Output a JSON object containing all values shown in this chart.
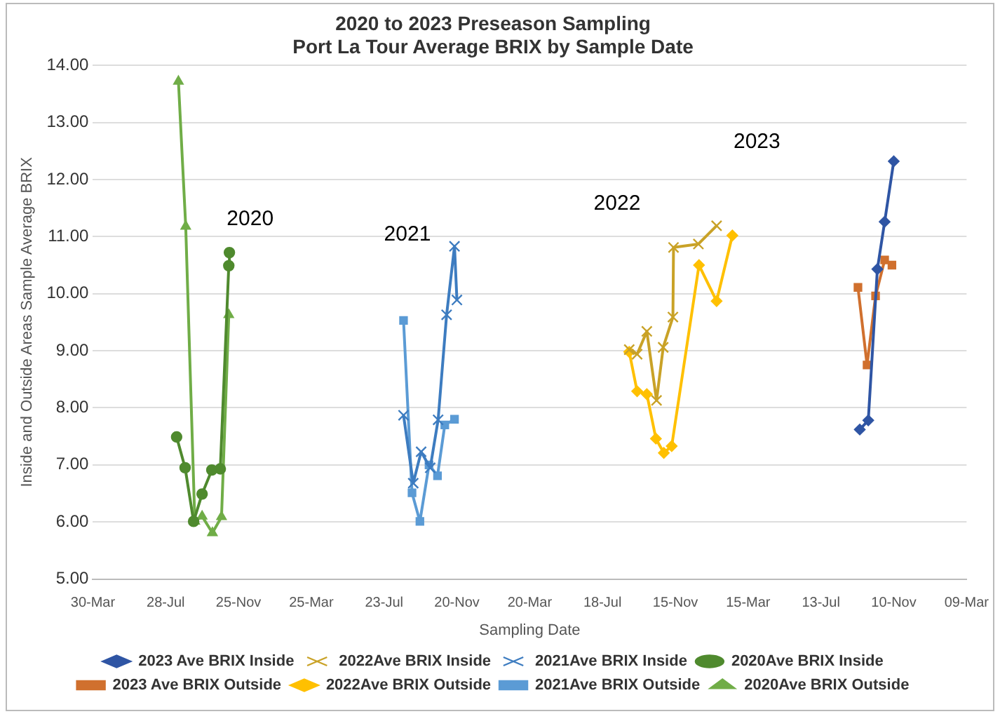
{
  "chart_data": {
    "type": "line",
    "title": "2020 to 2023 Preseason Sampling\nPort La Tour Average BRIX by Sample Date",
    "xlabel": "Sampling Date",
    "ylabel": "Inside and Outside Areas Sample Average BRIX",
    "xlim": [
      "2020-03-30",
      "2024-03-09"
    ],
    "xticks": [
      {
        "value": "2020-03-30",
        "label": "30-Mar"
      },
      {
        "value": "2020-07-28",
        "label": "28-Jul"
      },
      {
        "value": "2020-11-25",
        "label": "25-Nov"
      },
      {
        "value": "2021-03-25",
        "label": "25-Mar"
      },
      {
        "value": "2021-07-23",
        "label": "23-Jul"
      },
      {
        "value": "2021-11-20",
        "label": "20-Nov"
      },
      {
        "value": "2022-03-20",
        "label": "20-Mar"
      },
      {
        "value": "2022-07-18",
        "label": "18-Jul"
      },
      {
        "value": "2022-11-15",
        "label": "15-Nov"
      },
      {
        "value": "2023-03-15",
        "label": "15-Mar"
      },
      {
        "value": "2023-07-13",
        "label": "13-Jul"
      },
      {
        "value": "2023-11-10",
        "label": "10-Nov"
      },
      {
        "value": "2024-03-09",
        "label": "09-Mar"
      }
    ],
    "ylim": [
      5,
      14
    ],
    "yticks": [
      {
        "value": 5,
        "label": "5.00"
      },
      {
        "value": 6,
        "label": "6.00"
      },
      {
        "value": 7,
        "label": "7.00"
      },
      {
        "value": 8,
        "label": "8.00"
      },
      {
        "value": 9,
        "label": "9.00"
      },
      {
        "value": 10,
        "label": "10.00"
      },
      {
        "value": 11,
        "label": "11.00"
      },
      {
        "value": 12,
        "label": "12.00"
      },
      {
        "value": 13,
        "label": "13.00"
      },
      {
        "value": 14,
        "label": "14.00"
      }
    ],
    "grid": "y",
    "legend": "bottom",
    "line_style": "solid",
    "series": [
      {
        "name": "2023 Ave BRIX Inside",
        "color": "#2f55a4",
        "marker": "diamond",
        "x": [
          "2023-09-15",
          "2023-09-29",
          "2023-10-14",
          "2023-10-26",
          "2023-11-10"
        ],
        "values": [
          7.62,
          7.78,
          10.43,
          11.26,
          12.32
        ]
      },
      {
        "name": "2022Ave BRIX Inside",
        "color": "#c9a227",
        "marker": "cross",
        "x": [
          "2022-08-31",
          "2022-09-13",
          "2022-09-29",
          "2022-10-15",
          "2022-10-26",
          "2022-11-11",
          "2022-11-12",
          "2022-12-23",
          "2023-01-22"
        ],
        "values": [
          9.02,
          8.94,
          9.34,
          8.13,
          9.06,
          9.59,
          10.81,
          10.87,
          11.19
        ]
      },
      {
        "name": "2021Ave BRIX Inside",
        "color": "#3d7cc0",
        "marker": "cross",
        "x": [
          "2021-08-24",
          "2021-09-09",
          "2021-09-22",
          "2021-10-07",
          "2021-10-20",
          "2021-11-03",
          "2021-11-16",
          "2021-11-20"
        ],
        "values": [
          7.87,
          6.68,
          7.23,
          6.95,
          7.79,
          9.63,
          10.83,
          9.89
        ]
      },
      {
        "name": "2020Ave BRIX Inside",
        "color": "#4f8a2e",
        "marker": "circle",
        "x": [
          "2020-08-15",
          "2020-08-29",
          "2020-09-12",
          "2020-09-26",
          "2020-10-12",
          "2020-10-26",
          "2020-11-09",
          "2020-11-10"
        ],
        "values": [
          7.49,
          6.95,
          6.01,
          6.49,
          6.91,
          6.93,
          10.49,
          10.72
        ]
      },
      {
        "name": "2023 Ave BRIX Outside",
        "color": "#d0702e",
        "marker": "square",
        "x": [
          "2023-09-12",
          "2023-09-27",
          "2023-10-11",
          "2023-10-26",
          "2023-11-07"
        ],
        "values": [
          10.11,
          8.75,
          9.96,
          10.59,
          10.5
        ]
      },
      {
        "name": "2022Ave BRIX Outside",
        "color": "#ffc000",
        "marker": "diamond",
        "x": [
          "2022-08-31",
          "2022-09-13",
          "2022-09-29",
          "2022-10-14",
          "2022-10-27",
          "2022-11-09",
          "2022-12-24",
          "2023-01-22",
          "2023-02-17"
        ],
        "values": [
          8.98,
          8.29,
          8.24,
          7.46,
          7.21,
          7.33,
          10.5,
          9.87,
          11.02
        ]
      },
      {
        "name": "2021Ave BRIX Outside",
        "color": "#5b9bd5",
        "marker": "square",
        "x": [
          "2021-08-24",
          "2021-09-07",
          "2021-09-20",
          "2021-10-05",
          "2021-10-19",
          "2021-10-31",
          "2021-11-16"
        ],
        "values": [
          9.53,
          6.51,
          6.01,
          7.0,
          6.81,
          7.7,
          7.8
        ]
      },
      {
        "name": "2020Ave BRIX Outside",
        "color": "#70ad47",
        "marker": "triangle",
        "x": [
          "2020-08-18",
          "2020-08-30",
          "2020-09-14",
          "2020-09-26",
          "2020-10-13",
          "2020-10-28",
          "2020-11-09"
        ],
        "values": [
          13.72,
          11.18,
          6.01,
          6.1,
          5.81,
          6.09,
          9.63
        ]
      }
    ],
    "annotations": [
      "2020",
      "2021",
      "2022",
      "2023"
    ]
  }
}
